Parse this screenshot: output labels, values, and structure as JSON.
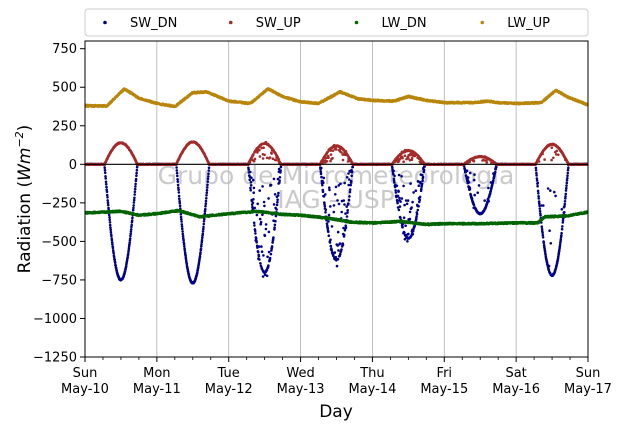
{
  "chart_data": {
    "type": "scatter",
    "ylabel": "Radiation (Wm⁻²)",
    "ylabel_parts": {
      "text": "Radiation (",
      "unit": "Wm",
      "exponent": "−2",
      "close": ")"
    },
    "xlabel": "Day",
    "xlim": [
      0,
      7
    ],
    "ylim": [
      -1250,
      800
    ],
    "yticks": [
      -1250,
      -1000,
      -750,
      -500,
      -250,
      0,
      250,
      500,
      750
    ],
    "ytick_labels": [
      "−1250",
      "−1000",
      "−750",
      "−500",
      "−250",
      "0",
      "250",
      "500",
      "750"
    ],
    "xticks": [
      {
        "x": 0,
        "day": "Sun",
        "date": "May-10"
      },
      {
        "x": 1,
        "day": "Mon",
        "date": "May-11"
      },
      {
        "x": 2,
        "day": "Tue",
        "date": "May-12"
      },
      {
        "x": 3,
        "day": "Wed",
        "date": "May-13"
      },
      {
        "x": 4,
        "day": "Thu",
        "date": "May-14"
      },
      {
        "x": 5,
        "day": "Fri",
        "date": "May-15"
      },
      {
        "x": 6,
        "day": "Sat",
        "date": "May-16"
      },
      {
        "x": 7,
        "day": "Sun",
        "date": "May-17"
      }
    ],
    "grid": "vertical",
    "zero_line": true,
    "legend": {
      "placement": "top",
      "columns": 4
    },
    "watermark": [
      "Grupo de Micrometeorologia",
      "IAG - USP"
    ],
    "series": [
      {
        "name": "SW_DN",
        "color": "#00008b",
        "daily": [
          {
            "day": 0,
            "peak": -750,
            "scatter": 0.0
          },
          {
            "day": 1,
            "peak": -770,
            "scatter": 0.0
          },
          {
            "day": 2,
            "peak": -700,
            "scatter": 0.45
          },
          {
            "day": 3,
            "peak": -620,
            "scatter": 0.55
          },
          {
            "day": 4,
            "peak": -480,
            "scatter": 0.5
          },
          {
            "day": 5,
            "peak": -320,
            "scatter": 0.2
          },
          {
            "day": 6,
            "peak": -720,
            "scatter": 0.1
          }
        ],
        "night": 0
      },
      {
        "name": "SW_UP",
        "color": "#a52a2a",
        "daily": [
          {
            "day": 0,
            "peak": 140,
            "scatter": 0.0
          },
          {
            "day": 1,
            "peak": 145,
            "scatter": 0.0
          },
          {
            "day": 2,
            "peak": 135,
            "scatter": 0.35
          },
          {
            "day": 3,
            "peak": 120,
            "scatter": 0.45
          },
          {
            "day": 4,
            "peak": 90,
            "scatter": 0.4
          },
          {
            "day": 5,
            "peak": 50,
            "scatter": 0.15
          },
          {
            "day": 6,
            "peak": 130,
            "scatter": 0.1
          }
        ],
        "night": 0
      },
      {
        "name": "LW_DN",
        "color": "#006400",
        "baseline": [
          [
            0,
            -315
          ],
          [
            0.5,
            -305
          ],
          [
            0.75,
            -330
          ],
          [
            1,
            -320
          ],
          [
            1.3,
            -300
          ],
          [
            1.6,
            -340
          ],
          [
            2,
            -320
          ],
          [
            2.4,
            -305
          ],
          [
            2.75,
            -325
          ],
          [
            3,
            -330
          ],
          [
            3.4,
            -350
          ],
          [
            3.7,
            -375
          ],
          [
            4,
            -380
          ],
          [
            4.4,
            -370
          ],
          [
            4.75,
            -390
          ],
          [
            5,
            -385
          ],
          [
            5.5,
            -385
          ],
          [
            6,
            -380
          ],
          [
            6.3,
            -380
          ],
          [
            6.4,
            -340
          ],
          [
            6.7,
            -335
          ],
          [
            7,
            -310
          ]
        ]
      },
      {
        "name": "LW_UP",
        "color": "#b8860b",
        "baseline": [
          [
            0,
            380
          ],
          [
            0.3,
            378
          ],
          [
            0.55,
            490
          ],
          [
            0.75,
            430
          ],
          [
            1,
            395
          ],
          [
            1.25,
            375
          ],
          [
            1.5,
            465
          ],
          [
            1.7,
            470
          ],
          [
            2,
            410
          ],
          [
            2.3,
            395
          ],
          [
            2.55,
            490
          ],
          [
            2.75,
            440
          ],
          [
            3,
            405
          ],
          [
            3.25,
            395
          ],
          [
            3.55,
            470
          ],
          [
            3.8,
            425
          ],
          [
            4,
            415
          ],
          [
            4.3,
            410
          ],
          [
            4.5,
            440
          ],
          [
            4.75,
            415
          ],
          [
            5,
            400
          ],
          [
            5.4,
            400
          ],
          [
            5.6,
            410
          ],
          [
            5.75,
            400
          ],
          [
            6,
            395
          ],
          [
            6.35,
            400
          ],
          [
            6.55,
            480
          ],
          [
            6.75,
            430
          ],
          [
            7,
            385
          ]
        ]
      }
    ]
  }
}
